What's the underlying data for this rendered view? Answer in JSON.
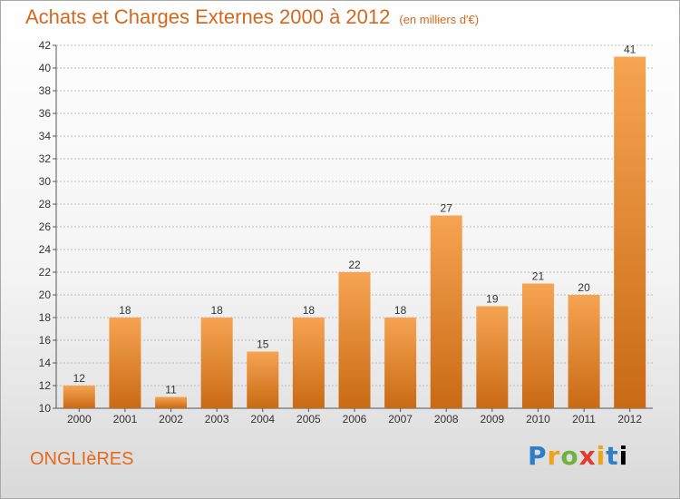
{
  "header": {
    "title": "Achats et Charges Externes 2000 à 2012",
    "subtitle": "(en milliers d'€)"
  },
  "footer": {
    "town": "ONGLIèRES",
    "logo": "Proxiti"
  },
  "colors": {
    "bar_top": "#f6a452",
    "bar_bottom": "#c96a14",
    "title": "#d2691e",
    "grid": "#bdbdbd"
  },
  "chart_data": {
    "type": "bar",
    "title": "Achats et Charges Externes 2000 à 2012",
    "subtitle": "(en milliers d'€)",
    "categories": [
      "2000",
      "2001",
      "2002",
      "2003",
      "2004",
      "2005",
      "2006",
      "2007",
      "2008",
      "2009",
      "2010",
      "2011",
      "2012"
    ],
    "values": [
      12,
      18,
      11,
      18,
      15,
      18,
      22,
      18,
      27,
      19,
      21,
      20,
      41
    ],
    "ylim": [
      10,
      42
    ],
    "yticks": [
      10,
      12,
      14,
      16,
      18,
      20,
      22,
      24,
      26,
      28,
      30,
      32,
      34,
      36,
      38,
      40,
      42
    ],
    "grid": true,
    "legend": "none"
  }
}
